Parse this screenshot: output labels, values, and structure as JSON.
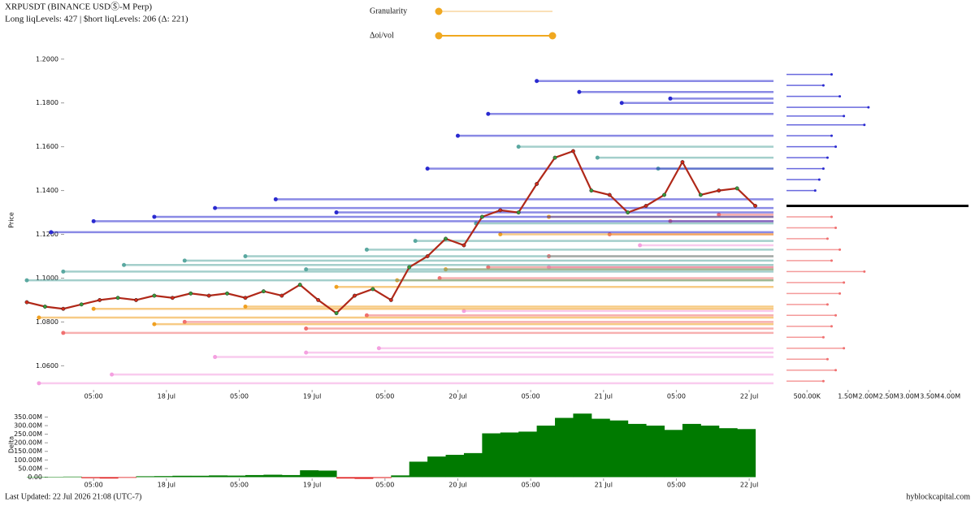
{
  "header": {
    "title": "XRPUSDT (BINANCE USDⓈ-M Perp)",
    "subtitle": "Long liqLevels: 427 | $hort liqLevels: 206 (Δ: 221)"
  },
  "controls": {
    "granularity": "Granularity",
    "oi_vol": "Δoi/vol"
  },
  "chart_data": [
    {
      "type": "line",
      "y_label": "Price",
      "xlim": [
        -6,
        117
      ],
      "ylim": [
        1.049,
        1.204
      ],
      "yticks": [
        {
          "value": 1.06,
          "label": "1.0600"
        },
        {
          "value": 1.08,
          "label": "1.0800"
        },
        {
          "value": 1.1,
          "label": "1.1000"
        },
        {
          "value": 1.12,
          "label": "1.1200"
        },
        {
          "value": 1.14,
          "label": "1.1400"
        },
        {
          "value": 1.16,
          "label": "1.1600"
        },
        {
          "value": 1.18,
          "label": "1.1800"
        },
        {
          "value": 1.2,
          "label": "1.2000"
        }
      ],
      "xticks": [
        {
          "value": 5,
          "label": "05:00"
        },
        {
          "value": 17,
          "label": "18 Jul"
        },
        {
          "value": 29,
          "label": "05:00"
        },
        {
          "value": 41,
          "label": "19 Jul"
        },
        {
          "value": 53,
          "label": "05:00"
        },
        {
          "value": 65,
          "label": "20 Jul"
        },
        {
          "value": 77,
          "label": "05:00"
        },
        {
          "value": 89,
          "label": "21 Jul"
        },
        {
          "value": 101,
          "label": "05:00"
        },
        {
          "value": 113,
          "label": "22 Jul"
        }
      ],
      "series": [
        {
          "kind": "level",
          "color": "#f4a0e0",
          "x": [
            -4,
            8,
            25,
            40,
            52,
            66,
            80,
            95
          ],
          "values": [
            1.052,
            1.056,
            1.064,
            1.066,
            1.068,
            1.085,
            1.105,
            1.115
          ]
        },
        {
          "kind": "level",
          "color": "#f07070",
          "x": [
            0,
            20,
            40,
            50,
            62,
            70,
            80,
            90,
            100,
            108
          ],
          "values": [
            1.075,
            1.08,
            1.077,
            1.083,
            1.1,
            1.105,
            1.11,
            1.12,
            1.126,
            1.129
          ]
        },
        {
          "kind": "level",
          "color": "#f0a020",
          "x": [
            -4,
            5,
            15,
            30,
            45,
            55,
            63,
            72,
            80
          ],
          "values": [
            1.082,
            1.086,
            1.079,
            1.087,
            1.096,
            1.099,
            1.104,
            1.12,
            1.128
          ]
        },
        {
          "kind": "level",
          "color": "#5aa8a0",
          "x": [
            -6,
            0,
            10,
            20,
            30,
            40,
            50,
            58,
            68,
            75,
            88,
            98
          ],
          "values": [
            1.099,
            1.103,
            1.106,
            1.108,
            1.11,
            1.104,
            1.113,
            1.117,
            1.125,
            1.16,
            1.155,
            1.15
          ]
        },
        {
          "kind": "level",
          "color": "#2a2ad0",
          "x": [
            -2,
            5,
            15,
            25,
            35,
            45,
            60,
            65,
            70,
            78,
            85,
            92,
            100
          ],
          "values": [
            1.121,
            1.126,
            1.128,
            1.132,
            1.136,
            1.13,
            1.15,
            1.165,
            1.175,
            1.19,
            1.185,
            1.18,
            1.182
          ]
        },
        {
          "kind": "price",
          "color": "#b02818",
          "x": [
            -6,
            -3,
            0,
            3,
            6,
            9,
            12,
            15,
            18,
            21,
            24,
            27,
            30,
            33,
            36,
            39,
            42,
            45,
            48,
            51,
            54,
            57,
            60,
            63,
            66,
            69,
            72,
            75,
            78,
            81,
            84,
            87,
            90,
            93,
            96,
            99,
            102,
            105,
            108,
            111,
            114
          ],
          "values": [
            1.089,
            1.087,
            1.086,
            1.088,
            1.09,
            1.091,
            1.09,
            1.092,
            1.091,
            1.093,
            1.092,
            1.093,
            1.091,
            1.094,
            1.092,
            1.097,
            1.09,
            1.084,
            1.092,
            1.095,
            1.09,
            1.105,
            1.11,
            1.118,
            1.115,
            1.128,
            1.131,
            1.13,
            1.143,
            1.155,
            1.158,
            1.14,
            1.138,
            1.13,
            1.133,
            1.138,
            1.153,
            1.138,
            1.14,
            1.141,
            1.133
          ]
        }
      ]
    },
    {
      "type": "barh",
      "xlim": [
        0,
        4500000
      ],
      "ylim": [
        1.049,
        1.204
      ],
      "xticks": [
        {
          "value": 500000,
          "label": "500.00K"
        },
        {
          "value": 1500000,
          "label": "1.50M"
        },
        {
          "value": 2000000,
          "label": "2.00M"
        },
        {
          "value": 2500000,
          "label": "2.50M"
        },
        {
          "value": 3000000,
          "label": "3.00M"
        },
        {
          "value": 3500000,
          "label": "3.50M"
        },
        {
          "value": 4000000,
          "label": "4.00M"
        }
      ],
      "series": [
        {
          "color": "#2a2ad0",
          "y": [
            1.193,
            1.188,
            1.183,
            1.178,
            1.174,
            1.17,
            1.165,
            1.16,
            1.155,
            1.15,
            1.145,
            1.14
          ],
          "values": [
            1100000,
            900000,
            1300000,
            2000000,
            1400000,
            1900000,
            1100000,
            1200000,
            1000000,
            900000,
            800000,
            700000
          ]
        },
        {
          "color": "#f07070",
          "y": [
            1.128,
            1.123,
            1.118,
            1.113,
            1.108,
            1.103,
            1.098,
            1.093,
            1.088,
            1.083,
            1.078,
            1.073,
            1.068,
            1.063,
            1.058,
            1.053
          ],
          "values": [
            1100000,
            1200000,
            1000000,
            1300000,
            1100000,
            1900000,
            1400000,
            1300000,
            1000000,
            1200000,
            1100000,
            900000,
            1400000,
            1000000,
            1200000,
            900000
          ]
        }
      ]
    },
    {
      "type": "area",
      "y_label": "Delta",
      "xlim": [
        -6,
        117
      ],
      "ylim": [
        -12000000,
        390000000
      ],
      "yticks": [
        {
          "value": 0,
          "label": "0.00"
        },
        {
          "value": 50000000,
          "label": "50.00M"
        },
        {
          "value": 100000000,
          "label": "100.00M"
        },
        {
          "value": 150000000,
          "label": "150.00M"
        },
        {
          "value": 200000000,
          "label": "200.00M"
        },
        {
          "value": 250000000,
          "label": "250.00M"
        },
        {
          "value": 300000000,
          "label": "300.00M"
        },
        {
          "value": 350000000,
          "label": "350.00M"
        }
      ],
      "xticks": [
        {
          "value": 5,
          "label": "05:00"
        },
        {
          "value": 17,
          "label": "18 Jul"
        },
        {
          "value": 29,
          "label": "05:00"
        },
        {
          "value": 41,
          "label": "19 Jul"
        },
        {
          "value": 53,
          "label": "05:00"
        },
        {
          "value": 65,
          "label": "20 Jul"
        },
        {
          "value": 77,
          "label": "05:00"
        },
        {
          "value": 89,
          "label": "21 Jul"
        },
        {
          "value": 101,
          "label": "05:00"
        },
        {
          "value": 113,
          "label": "22 Jul"
        }
      ],
      "colors": {
        "positive": "#007a00",
        "negative": "#e02020"
      },
      "x": [
        -6,
        -3,
        0,
        3,
        6,
        9,
        12,
        15,
        18,
        21,
        24,
        27,
        30,
        33,
        36,
        39,
        42,
        45,
        48,
        51,
        54,
        57,
        60,
        63,
        66,
        69,
        72,
        75,
        78,
        81,
        84,
        87,
        90,
        93,
        96,
        99,
        102,
        105,
        108,
        111
      ],
      "values": [
        0,
        2000000,
        3000000,
        -6000000,
        -8000000,
        -4000000,
        5000000,
        6000000,
        8000000,
        8000000,
        10000000,
        9000000,
        12000000,
        14000000,
        12000000,
        40000000,
        38000000,
        -8000000,
        -10000000,
        -5000000,
        10000000,
        90000000,
        120000000,
        130000000,
        140000000,
        255000000,
        260000000,
        265000000,
        300000000,
        345000000,
        370000000,
        340000000,
        330000000,
        310000000,
        300000000,
        275000000,
        310000000,
        300000000,
        285000000,
        280000000
      ]
    }
  ],
  "footer": {
    "updated": "Last Updated: 22 Jul 2026 21:08 (UTC-7)",
    "site": "hyblockcapital.com"
  }
}
